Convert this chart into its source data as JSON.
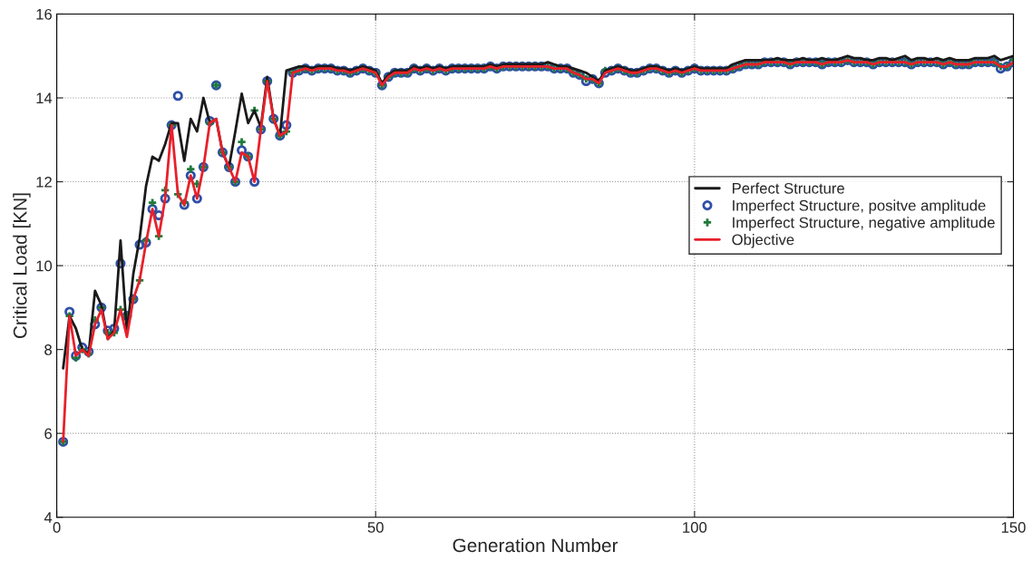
{
  "chart_data": {
    "type": "line",
    "xlabel": "Generation Number",
    "ylabel": "Critical Load [KN]",
    "x": [
      1,
      2,
      3,
      4,
      5,
      6,
      7,
      8,
      9,
      10,
      11,
      12,
      13,
      14,
      15,
      16,
      17,
      18,
      19,
      20,
      21,
      22,
      23,
      24,
      25,
      26,
      27,
      28,
      29,
      30,
      31,
      32,
      33,
      34,
      35,
      36,
      37,
      38,
      39,
      40,
      41,
      42,
      43,
      44,
      45,
      46,
      47,
      48,
      49,
      50,
      51,
      52,
      53,
      54,
      55,
      56,
      57,
      58,
      59,
      60,
      61,
      62,
      63,
      64,
      65,
      66,
      67,
      68,
      69,
      70,
      71,
      72,
      73,
      74,
      75,
      76,
      77,
      78,
      79,
      80,
      81,
      82,
      83,
      84,
      85,
      86,
      87,
      88,
      89,
      90,
      91,
      92,
      93,
      94,
      95,
      96,
      97,
      98,
      99,
      100,
      101,
      102,
      103,
      104,
      105,
      106,
      107,
      108,
      109,
      110,
      111,
      112,
      113,
      114,
      115,
      116,
      117,
      118,
      119,
      120,
      121,
      122,
      123,
      124,
      125,
      126,
      127,
      128,
      129,
      130,
      131,
      132,
      133,
      134,
      135,
      136,
      137,
      138,
      139,
      140,
      141,
      142,
      143,
      144,
      145,
      146,
      147,
      148,
      149,
      150
    ],
    "series": [
      {
        "name": "Perfect Structure",
        "type": "line",
        "color": "#1a1a1a",
        "marker": "none",
        "values": [
          7.55,
          8.8,
          8.5,
          8.0,
          7.9,
          9.4,
          9.05,
          8.25,
          8.45,
          10.6,
          8.4,
          9.8,
          10.65,
          11.9,
          12.6,
          12.5,
          12.9,
          13.4,
          13.4,
          12.5,
          13.5,
          13.2,
          14.0,
          13.4,
          13.5,
          12.7,
          12.35,
          13.2,
          14.1,
          13.4,
          13.7,
          13.3,
          14.5,
          13.5,
          13.1,
          14.65,
          14.7,
          14.75,
          14.75,
          14.7,
          14.75,
          14.75,
          14.75,
          14.7,
          14.7,
          14.65,
          14.7,
          14.75,
          14.7,
          14.65,
          14.35,
          14.55,
          14.65,
          14.65,
          14.65,
          14.75,
          14.7,
          14.75,
          14.7,
          14.75,
          14.7,
          14.75,
          14.75,
          14.75,
          14.75,
          14.75,
          14.75,
          14.8,
          14.75,
          14.8,
          14.8,
          14.8,
          14.8,
          14.8,
          14.8,
          14.8,
          14.85,
          14.8,
          14.75,
          14.75,
          14.7,
          14.65,
          14.6,
          14.5,
          14.4,
          14.65,
          14.7,
          14.75,
          14.7,
          14.65,
          14.65,
          14.7,
          14.75,
          14.75,
          14.7,
          14.65,
          14.7,
          14.65,
          14.7,
          14.75,
          14.7,
          14.7,
          14.7,
          14.7,
          14.7,
          14.8,
          14.85,
          14.9,
          14.9,
          14.9,
          14.9,
          14.9,
          14.95,
          14.9,
          14.9,
          14.9,
          14.95,
          14.9,
          14.9,
          14.95,
          14.9,
          14.9,
          14.95,
          15.0,
          14.95,
          14.95,
          14.9,
          14.9,
          14.95,
          14.95,
          14.9,
          14.95,
          15.0,
          14.9,
          14.95,
          14.95,
          14.9,
          14.95,
          14.9,
          14.95,
          14.9,
          14.9,
          14.9,
          14.95,
          14.95,
          14.95,
          15.0,
          14.9,
          14.95,
          15.0
        ]
      },
      {
        "name": "Imperfect Structure, positve amplitude",
        "type": "scatter",
        "color": "#2e4fa8",
        "marker": "circle",
        "values": [
          5.8,
          8.9,
          7.85,
          8.05,
          7.95,
          8.6,
          9.0,
          8.45,
          8.5,
          10.05,
          8.8,
          9.2,
          10.5,
          10.55,
          11.35,
          11.2,
          11.6,
          13.35,
          14.05,
          11.45,
          12.15,
          11.6,
          12.35,
          13.45,
          14.3,
          12.7,
          12.35,
          12.0,
          12.75,
          12.6,
          12.0,
          13.25,
          14.4,
          13.5,
          13.1,
          13.35,
          14.6,
          14.65,
          14.7,
          14.65,
          14.7,
          14.7,
          14.7,
          14.65,
          14.65,
          14.6,
          14.65,
          14.7,
          14.65,
          14.6,
          14.3,
          14.5,
          14.6,
          14.6,
          14.6,
          14.7,
          14.65,
          14.7,
          14.65,
          14.7,
          14.65,
          14.7,
          14.7,
          14.7,
          14.7,
          14.7,
          14.7,
          14.75,
          14.7,
          14.75,
          14.75,
          14.75,
          14.75,
          14.75,
          14.75,
          14.75,
          14.75,
          14.7,
          14.7,
          14.7,
          14.6,
          14.55,
          14.4,
          14.45,
          14.35,
          14.6,
          14.65,
          14.7,
          14.65,
          14.6,
          14.6,
          14.65,
          14.7,
          14.7,
          14.65,
          14.6,
          14.65,
          14.6,
          14.65,
          14.7,
          14.65,
          14.65,
          14.65,
          14.65,
          14.65,
          14.7,
          14.75,
          14.8,
          14.8,
          14.8,
          14.85,
          14.85,
          14.85,
          14.85,
          14.8,
          14.85,
          14.85,
          14.85,
          14.85,
          14.8,
          14.85,
          14.85,
          14.85,
          14.9,
          14.85,
          14.85,
          14.85,
          14.8,
          14.85,
          14.85,
          14.85,
          14.85,
          14.85,
          14.8,
          14.85,
          14.85,
          14.85,
          14.85,
          14.8,
          14.85,
          14.8,
          14.8,
          14.8,
          14.85,
          14.85,
          14.85,
          14.85,
          14.7,
          14.75,
          14.85
        ]
      },
      {
        "name": "Imperfect Structure, negative amplitude",
        "type": "scatter",
        "color": "#1f7a3a",
        "marker": "cross",
        "values": [
          5.8,
          8.8,
          7.8,
          8.0,
          7.9,
          8.7,
          9.0,
          8.4,
          8.4,
          8.95,
          8.8,
          9.2,
          9.65,
          10.6,
          11.5,
          10.7,
          11.8,
          13.35,
          11.7,
          11.5,
          12.3,
          11.95,
          12.35,
          13.4,
          14.3,
          12.7,
          12.35,
          12.0,
          12.95,
          12.6,
          13.7,
          13.25,
          14.4,
          13.5,
          13.1,
          13.2,
          14.6,
          14.65,
          14.7,
          14.65,
          14.7,
          14.7,
          14.7,
          14.65,
          14.65,
          14.6,
          14.65,
          14.7,
          14.65,
          14.6,
          14.3,
          14.5,
          14.6,
          14.6,
          14.6,
          14.7,
          14.65,
          14.7,
          14.65,
          14.7,
          14.65,
          14.7,
          14.7,
          14.7,
          14.7,
          14.7,
          14.7,
          14.75,
          14.7,
          14.75,
          14.75,
          14.75,
          14.75,
          14.75,
          14.75,
          14.75,
          14.75,
          14.7,
          14.7,
          14.7,
          14.6,
          14.55,
          14.45,
          14.45,
          14.35,
          14.65,
          14.65,
          14.7,
          14.65,
          14.6,
          14.6,
          14.65,
          14.7,
          14.7,
          14.65,
          14.6,
          14.65,
          14.6,
          14.65,
          14.7,
          14.65,
          14.65,
          14.65,
          14.65,
          14.65,
          14.7,
          14.75,
          14.8,
          14.8,
          14.8,
          14.85,
          14.85,
          14.85,
          14.85,
          14.8,
          14.85,
          14.85,
          14.85,
          14.85,
          14.8,
          14.85,
          14.85,
          14.85,
          14.9,
          14.85,
          14.85,
          14.85,
          14.8,
          14.85,
          14.85,
          14.85,
          14.85,
          14.85,
          14.8,
          14.85,
          14.85,
          14.85,
          14.85,
          14.8,
          14.85,
          14.8,
          14.8,
          14.8,
          14.85,
          14.85,
          14.85,
          14.85,
          14.75,
          14.75,
          14.9
        ]
      },
      {
        "name": "Objective",
        "type": "line",
        "color": "#e8202a",
        "marker": "none",
        "values": [
          5.8,
          8.8,
          7.85,
          8.0,
          7.85,
          8.6,
          8.95,
          8.25,
          8.4,
          8.95,
          8.3,
          9.2,
          9.65,
          10.55,
          11.35,
          10.7,
          11.6,
          13.35,
          11.7,
          11.45,
          12.15,
          11.6,
          12.35,
          13.4,
          13.5,
          12.7,
          12.35,
          12.0,
          12.7,
          12.6,
          12.0,
          13.25,
          14.4,
          13.5,
          13.1,
          13.2,
          14.6,
          14.65,
          14.7,
          14.65,
          14.7,
          14.7,
          14.7,
          14.65,
          14.65,
          14.6,
          14.65,
          14.7,
          14.65,
          14.6,
          14.3,
          14.5,
          14.6,
          14.6,
          14.6,
          14.7,
          14.65,
          14.7,
          14.65,
          14.7,
          14.65,
          14.7,
          14.7,
          14.7,
          14.7,
          14.7,
          14.7,
          14.75,
          14.7,
          14.75,
          14.75,
          14.75,
          14.75,
          14.75,
          14.75,
          14.75,
          14.75,
          14.7,
          14.7,
          14.7,
          14.6,
          14.55,
          14.45,
          14.45,
          14.35,
          14.6,
          14.65,
          14.7,
          14.65,
          14.6,
          14.6,
          14.65,
          14.7,
          14.7,
          14.65,
          14.6,
          14.65,
          14.6,
          14.65,
          14.7,
          14.65,
          14.65,
          14.65,
          14.65,
          14.65,
          14.7,
          14.75,
          14.8,
          14.8,
          14.8,
          14.85,
          14.85,
          14.85,
          14.85,
          14.8,
          14.85,
          14.85,
          14.85,
          14.85,
          14.8,
          14.85,
          14.85,
          14.85,
          14.9,
          14.85,
          14.85,
          14.85,
          14.8,
          14.85,
          14.85,
          14.85,
          14.85,
          14.85,
          14.8,
          14.85,
          14.85,
          14.85,
          14.85,
          14.8,
          14.85,
          14.8,
          14.8,
          14.8,
          14.85,
          14.85,
          14.85,
          14.85,
          14.75,
          14.75,
          14.85
        ]
      }
    ],
    "xlim": [
      0,
      150
    ],
    "xticks": [
      0,
      50,
      100,
      150
    ],
    "ylim": [
      4,
      16
    ],
    "yticks": [
      4,
      6,
      8,
      10,
      12,
      14,
      16
    ],
    "grid": true,
    "legend": "right",
    "line_style": "solid"
  }
}
